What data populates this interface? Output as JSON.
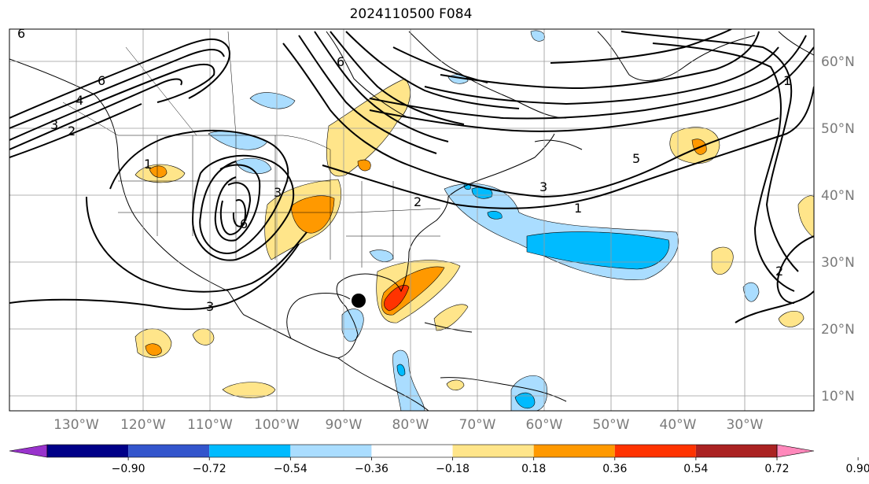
{
  "title": "2024110500 F084",
  "lon_labels": [
    "130°W",
    "120°W",
    "110°W",
    "100°W",
    "90°W",
    "80°W",
    "70°W",
    "60°W",
    "50°W",
    "40°W",
    "30°W"
  ],
  "lat_labels": [
    "60°N",
    "50°N",
    "40°N",
    "30°N",
    "20°N",
    "10°N"
  ],
  "contour_labels": {
    "c1": "6",
    "c2": "6",
    "c3": "4",
    "c4": "3",
    "c5": "2",
    "c6": "1",
    "c7": "6",
    "c8": "3",
    "c9": "3",
    "c10": "1",
    "c11": "5",
    "c12": "1",
    "c13": "2",
    "c14": "2",
    "c15": "3",
    "c16": "6"
  },
  "colorbar": {
    "ticks": [
      "−0.90",
      "−0.72",
      "−0.54",
      "−0.36",
      "−0.18",
      "0.18",
      "0.36",
      "0.54",
      "0.72",
      "0.90"
    ],
    "colors": [
      "#9933cc",
      "#000088",
      "#3355cc",
      "#00bbff",
      "#aaddff",
      "#ffffff",
      "#ffe58a",
      "#ff9900",
      "#ff3300",
      "#aa2222",
      "#ff88bb"
    ]
  }
}
